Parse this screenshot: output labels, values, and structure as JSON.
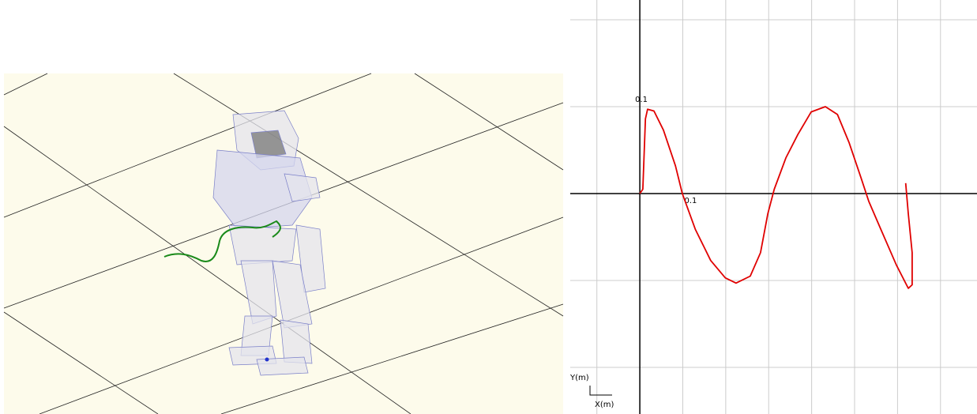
{
  "chart_data": {
    "type": "line",
    "xlabel": "X(m)",
    "ylabel": "Y(m)",
    "x": [
      0,
      0.007,
      0.013,
      0.018,
      0.033,
      0.055,
      0.083,
      0.099,
      0.129,
      0.165,
      0.199,
      0.224,
      0.257,
      0.281,
      0.298,
      0.313,
      0.34,
      0.368,
      0.399,
      0.432,
      0.46,
      0.487,
      0.515,
      0.533,
      0.561,
      0.597,
      0.625,
      0.634,
      0.634,
      0.625,
      0.619
    ],
    "series": [
      {
        "color": "#e00000",
        "values": [
          0,
          0.005,
          0.086,
          0.097,
          0.095,
          0.073,
          0.032,
          0,
          -0.041,
          -0.077,
          -0.097,
          -0.103,
          -0.095,
          -0.068,
          -0.023,
          0.005,
          0.041,
          0.068,
          0.094,
          0.1,
          0.091,
          0.059,
          0.018,
          -0.009,
          -0.041,
          -0.082,
          -0.109,
          -0.105,
          -0.068,
          -0.023,
          0.012
        ]
      }
    ],
    "xlim": [
      -0.162,
      0.785
    ],
    "ylim": [
      -0.2536,
      0.2227
    ],
    "xticks": [
      {
        "value": -0.1,
        "label": null
      },
      {
        "value": 0,
        "label": null
      },
      0.1,
      {
        "value": 0.2,
        "label": null
      },
      {
        "value": 0.3,
        "label": null
      },
      {
        "value": 0.4,
        "label": null
      },
      {
        "value": 0.5,
        "label": null
      },
      {
        "value": 0.6,
        "label": null
      },
      {
        "value": 0.7,
        "label": null
      }
    ],
    "yticks": [
      {
        "value": -0.2,
        "label": null
      },
      {
        "value": -0.1,
        "label": null
      },
      {
        "value": 0,
        "label": null
      },
      0.1,
      {
        "value": 0.2,
        "label": null
      }
    ],
    "grid": true
  }
}
